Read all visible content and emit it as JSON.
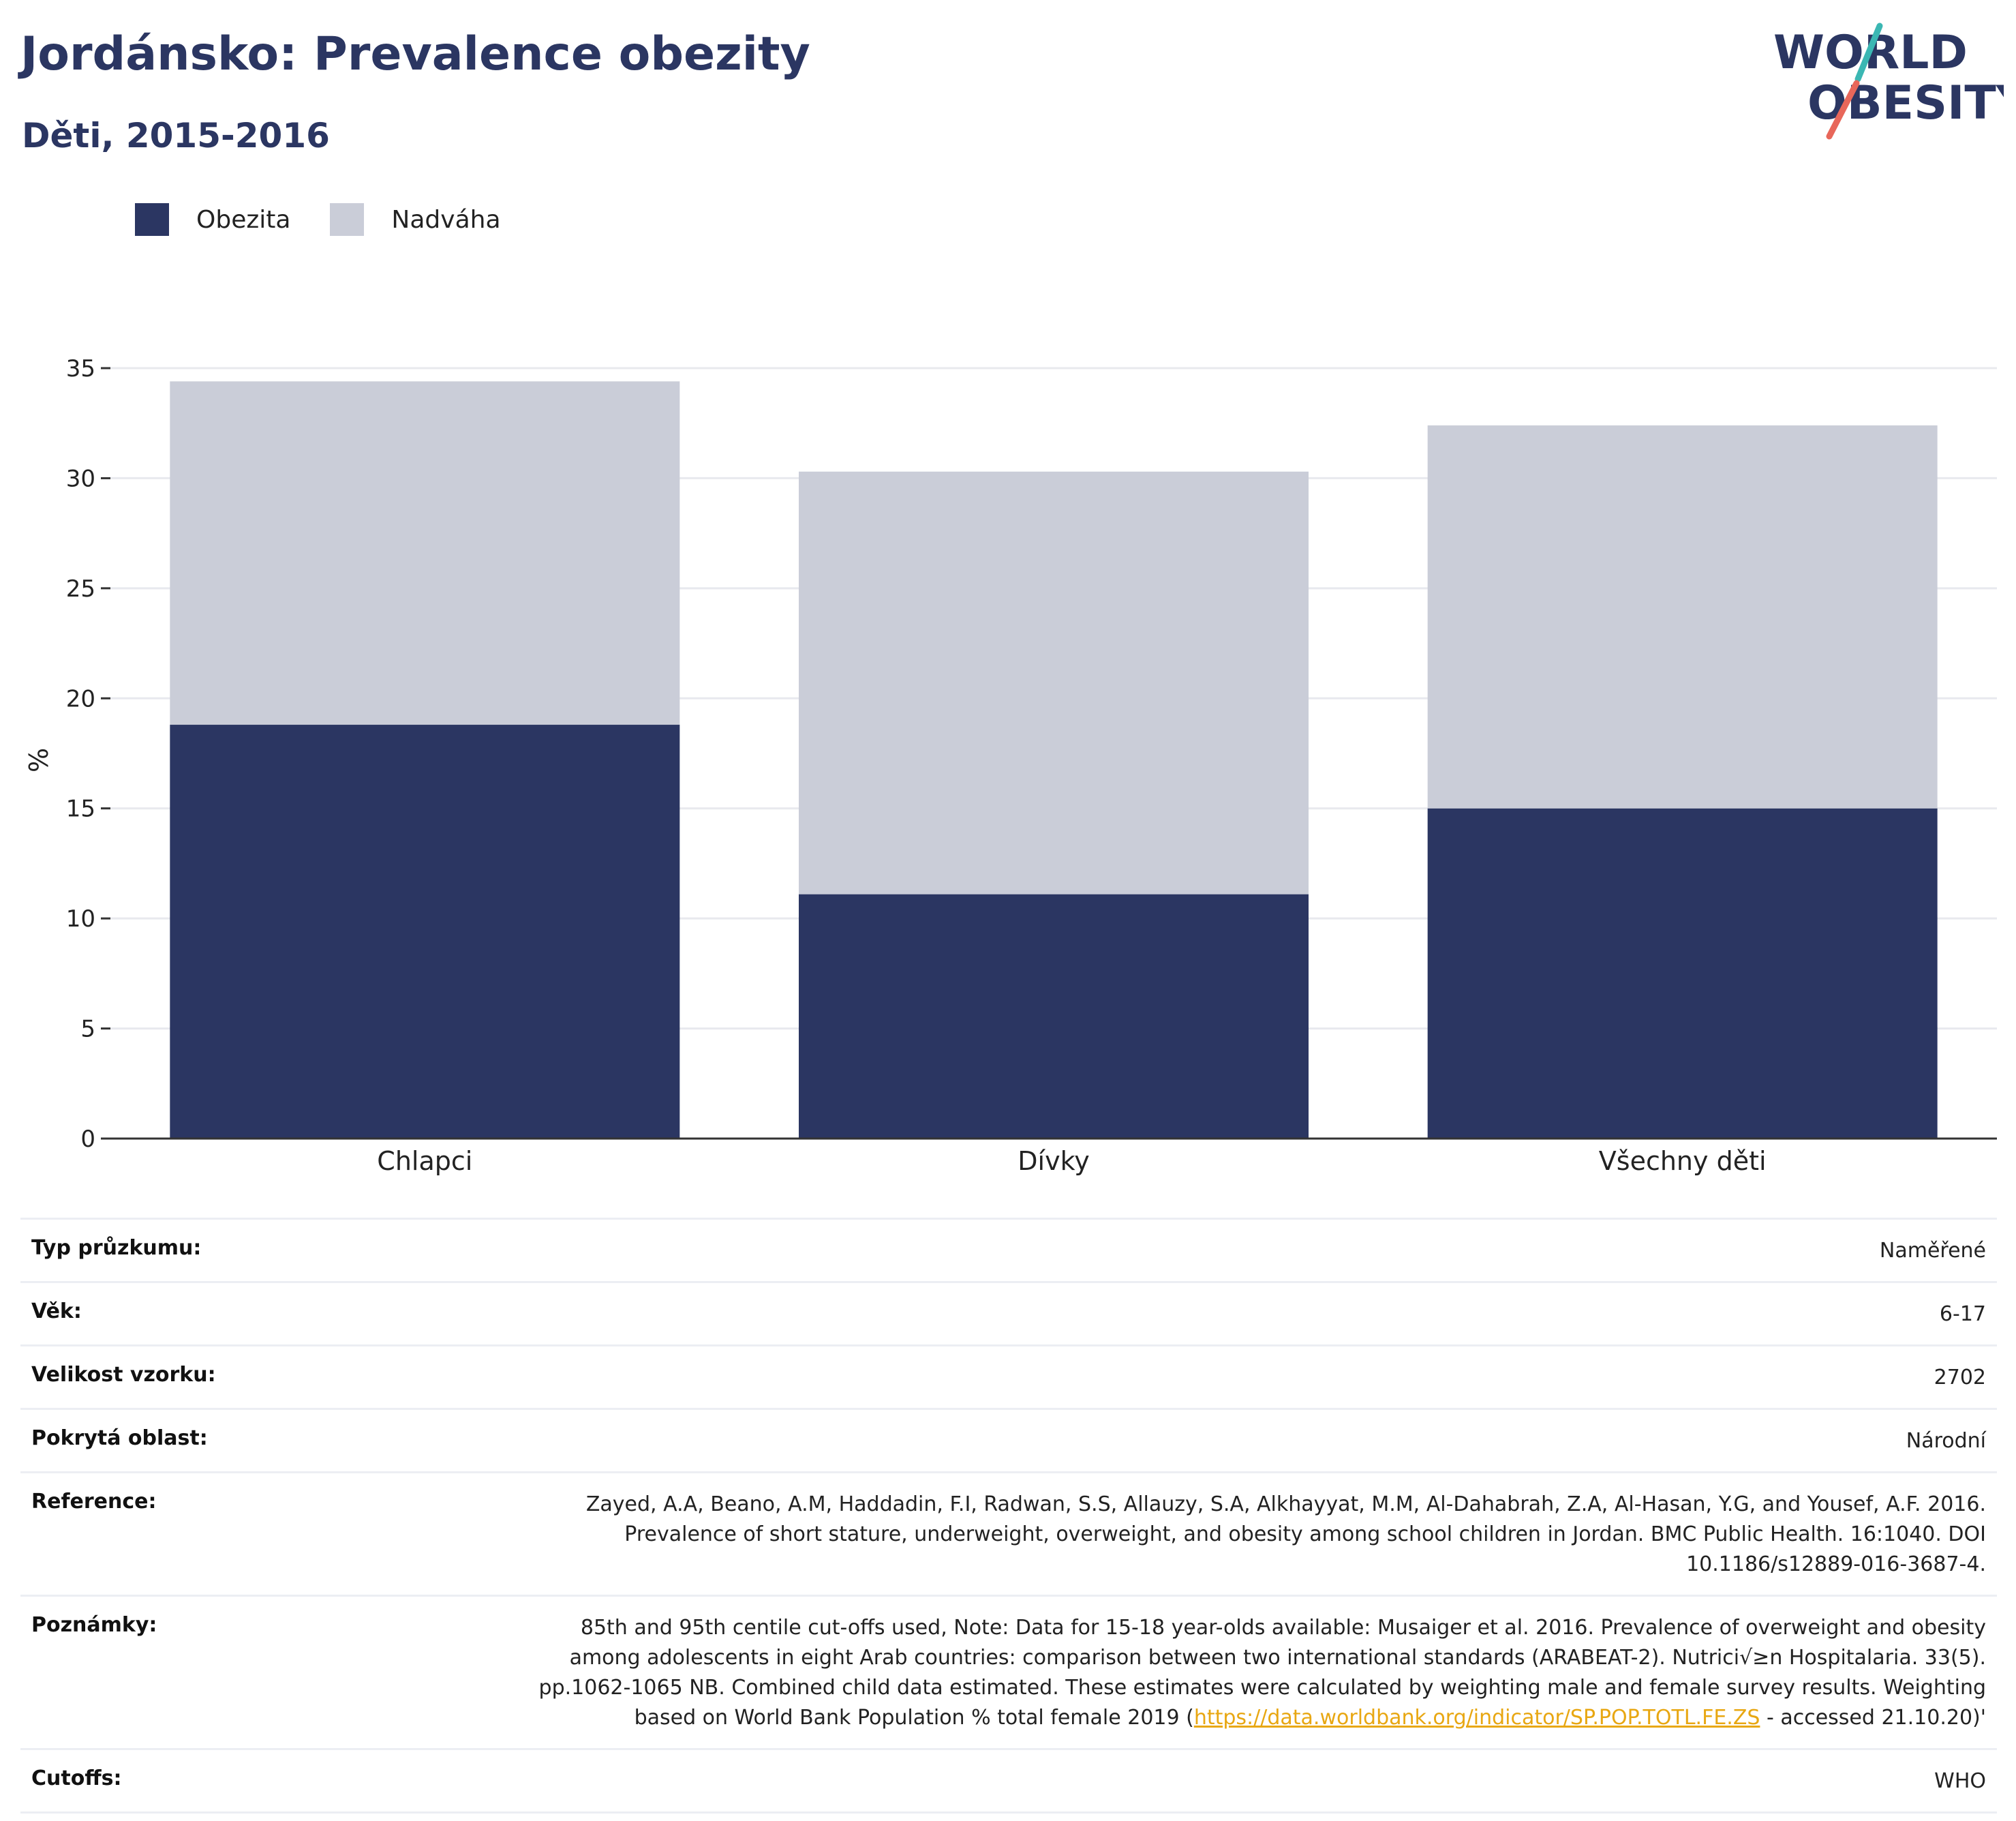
{
  "title": "Jordánsko: Prevalence obezity",
  "subtitle": "Děti, 2015-2016",
  "logo": {
    "line1": "WORLD",
    "line2": "OBESITY"
  },
  "colors": {
    "obesity": "#2b3662",
    "overweight": "#cacdd8",
    "title": "#2b3662",
    "link": "#e8a712",
    "logo_teal": "#3bb7b3",
    "logo_coral": "#e8675a"
  },
  "legend": [
    {
      "label": "Obezita",
      "color": "#2b3662"
    },
    {
      "label": "Nadváha",
      "color": "#cacdd8"
    }
  ],
  "chart_data": {
    "type": "bar",
    "stacked": true,
    "categories": [
      "Chlapci",
      "Dívky",
      "Všechny děti"
    ],
    "series": [
      {
        "name": "Obezita",
        "values": [
          18.8,
          11.1,
          15.0
        ]
      },
      {
        "name": "Nadváha",
        "values": [
          15.6,
          19.2,
          17.4
        ]
      }
    ],
    "ylabel": "%",
    "ylim": [
      0,
      35
    ],
    "yticks": [
      0,
      5,
      10,
      15,
      20,
      25,
      30,
      35
    ],
    "grid": true,
    "legend_position": "top-left"
  },
  "meta": [
    {
      "key": "Typ průzkumu:",
      "value": "Naměřené"
    },
    {
      "key": "Věk:",
      "value": "6-17"
    },
    {
      "key": "Velikost vzorku:",
      "value": "2702"
    },
    {
      "key": "Pokrytá oblast:",
      "value": "Národní"
    },
    {
      "key": "Reference:",
      "value": "Zayed, A.A, Beano, A.M, Haddadin, F.I, Radwan, S.S, Allauzy, S.A, Alkhayyat, M.M, Al-Dahabrah, Z.A, Al-Hasan, Y.G, and Yousef, A.F. 2016. Prevalence of short stature, underweight, overweight, and obesity among school children in Jordan. BMC Public Health. 16:1040. DOI 10.1186/s12889-016-3687-4."
    },
    {
      "key": "Poznámky:",
      "value": "85th and 95th centile cut-offs used, Note: Data for 15-18 year-olds available: Musaiger et al. 2016. Prevalence of overweight and obesity among adolescents in eight Arab countries: comparison between two international standards (ARABEAT-2). Nutrici√≥n Hospitalaria. 33(5). pp.1062-1065 NB. Combined child data estimated. These estimates were calculated by weighting male and female survey results. Weighting based on World Bank Population % total female 2019 (",
      "link": "https://data.worldbank.org/indicator/SP.POP.TOTL.FE.ZS",
      "value_after": " - accessed 21.10.20)'"
    },
    {
      "key": "Cutoffs:",
      "value": "WHO"
    }
  ]
}
